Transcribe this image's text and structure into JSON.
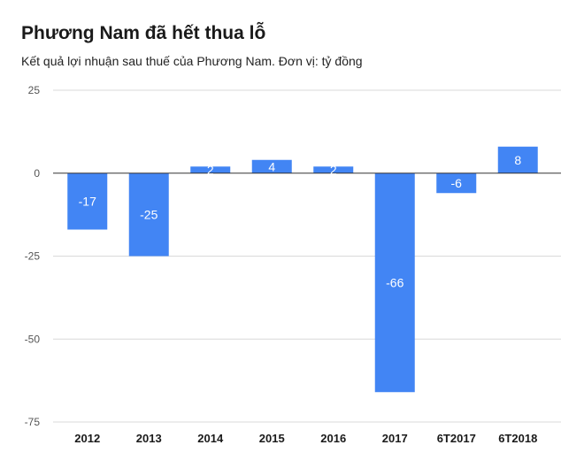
{
  "chart_data": {
    "type": "bar",
    "title": "Phương Nam đã hết thua lỗ",
    "subtitle": "Kết quả lợi nhuận sau thuế của Phương Nam. Đơn vị: tỷ đồng",
    "categories": [
      "2012",
      "2013",
      "2014",
      "2015",
      "2016",
      "2017",
      "6T2017",
      "6T2018"
    ],
    "values": [
      -17,
      -25,
      2,
      4,
      2,
      -66,
      -6,
      8
    ],
    "data_labels": [
      "-17",
      "-25",
      "2",
      "4",
      "2",
      "-66",
      "-6",
      "8"
    ],
    "yticks": [
      25,
      0,
      -25,
      -50,
      -75
    ],
    "ylim": [
      -75,
      25
    ],
    "grid": true,
    "legend": "none",
    "colors": {
      "bar": "#4285f4",
      "grid": "#d9d9d9",
      "zero_line": "#333333"
    }
  }
}
